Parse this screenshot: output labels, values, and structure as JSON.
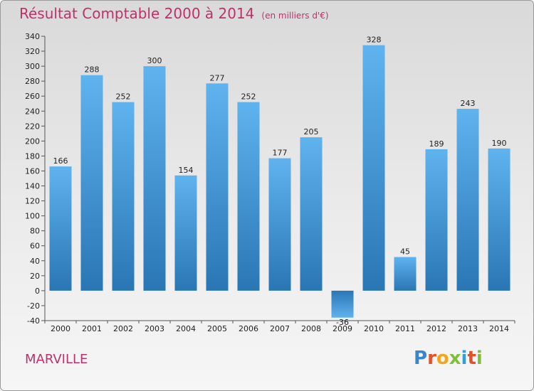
{
  "header": {
    "title": "Résultat Comptable 2000 à 2014",
    "subtitle": "(en milliers d'€)"
  },
  "footer": {
    "commune": "MARVILLE",
    "logo_text": "Proxiti"
  },
  "colors": {
    "title": "#c0306a",
    "bar_top": "#5fb3ee",
    "bar_bottom": "#2a76b5",
    "logo_letters": [
      "#3a86c8",
      "#e2512a",
      "#f3a61c",
      "#7fbf3a",
      "#2e9fd8",
      "#e2512a",
      "#7fbf3a"
    ]
  },
  "chart_data": {
    "type": "bar",
    "categories": [
      "2000",
      "2001",
      "2002",
      "2003",
      "2004",
      "2005",
      "2006",
      "2007",
      "2008",
      "2009",
      "2010",
      "2011",
      "2012",
      "2013",
      "2014"
    ],
    "values": [
      166,
      288,
      252,
      300,
      154,
      277,
      252,
      177,
      205,
      -36,
      328,
      45,
      189,
      243,
      190
    ],
    "value_labels": [
      "166",
      "288",
      "252",
      "300",
      "154",
      "277",
      "252",
      "177",
      "205",
      "-36",
      "328",
      "45",
      "189",
      "243",
      "190"
    ],
    "title": "Résultat Comptable 2000 à 2014",
    "subtitle": "(en milliers d'€)",
    "xlabel": "",
    "ylabel": "",
    "ylim": [
      -40,
      340
    ],
    "yticks": [
      -40,
      -20,
      0,
      20,
      40,
      60,
      80,
      100,
      120,
      140,
      160,
      180,
      200,
      220,
      240,
      260,
      280,
      300,
      320,
      340
    ],
    "ytick_labels": [
      "-40",
      "-20",
      "0",
      "20",
      "40",
      "60",
      "80",
      "100",
      "120",
      "140",
      "160",
      "180",
      "200",
      "220",
      "240",
      "260",
      "280",
      "300",
      "320",
      "340"
    ],
    "grid": false
  }
}
